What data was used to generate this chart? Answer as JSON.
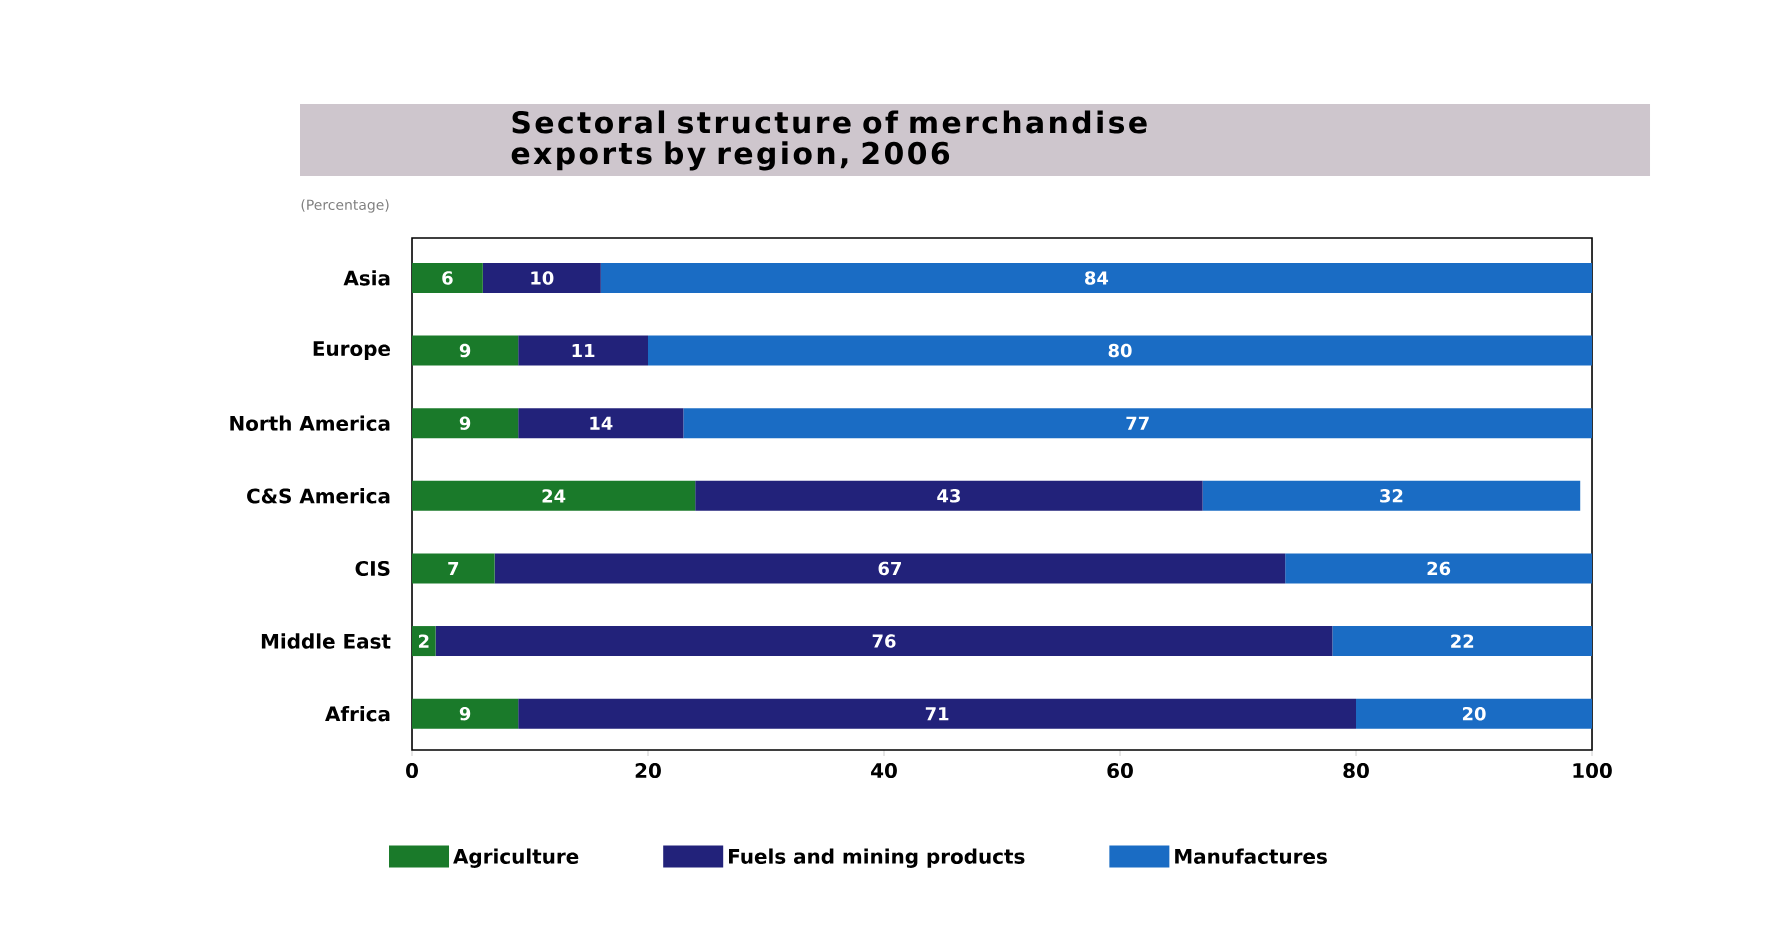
{
  "chart_data": {
    "type": "bar",
    "orientation": "horizontal",
    "stacked": true,
    "title": "Sectoral structure of merchandise exports by region, 2006",
    "subtitle": "(Percentage)",
    "categories": [
      "Asia",
      "Europe",
      "North America",
      "C&S America",
      "CIS",
      "Middle East",
      "Africa"
    ],
    "series": [
      {
        "name": "Agriculture",
        "color": "#1a7a2a",
        "values": [
          6,
          9,
          9,
          24,
          7,
          2,
          9
        ]
      },
      {
        "name": "Fuels and mining products",
        "color": "#22227a",
        "values": [
          10,
          11,
          14,
          43,
          67,
          76,
          71
        ]
      },
      {
        "name": "Manufactures",
        "color": "#1a6cc4",
        "values": [
          84,
          80,
          77,
          32,
          26,
          22,
          20
        ]
      }
    ],
    "xlim": [
      0,
      100
    ],
    "xticks": [
      0,
      20,
      40,
      60,
      80,
      100
    ],
    "data_labels": true,
    "legend": "bottom"
  }
}
